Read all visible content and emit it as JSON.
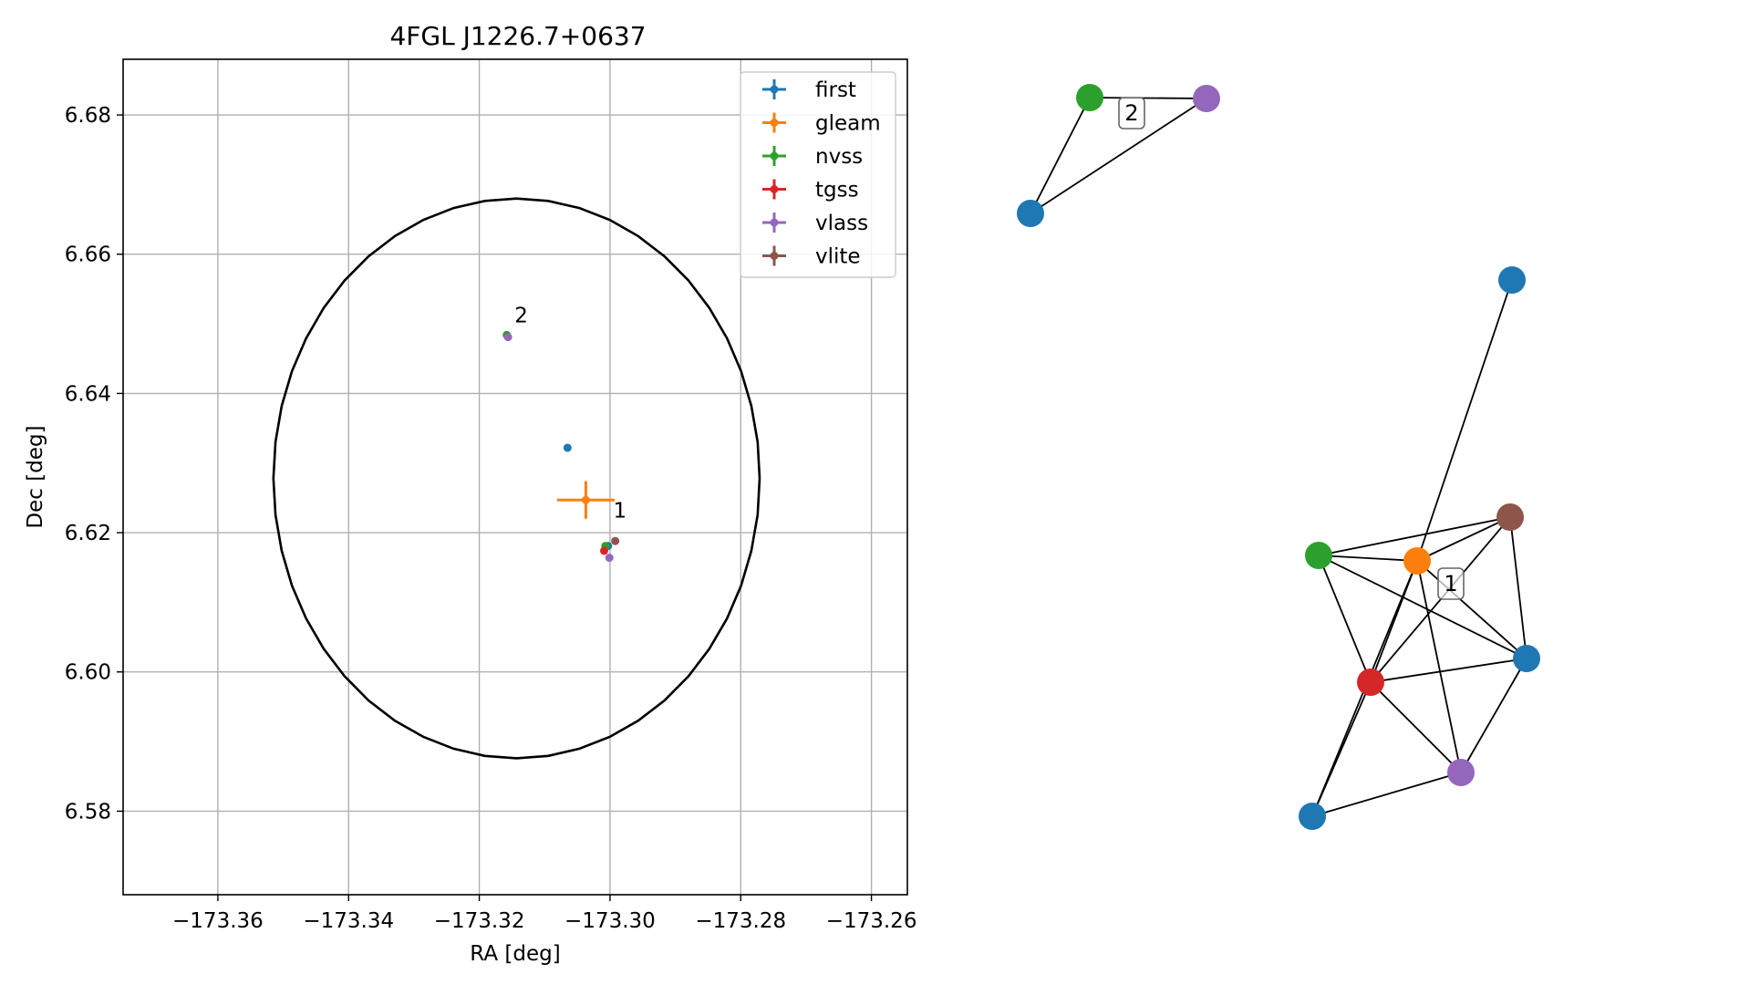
{
  "chart_data": [
    {
      "type": "scatter",
      "title": "4FGL J1226.7+0637",
      "xlabel": "RA [deg]",
      "ylabel": "Dec [deg]",
      "xlim": [
        -173.3745,
        -173.2545
      ],
      "ylim": [
        6.568,
        6.688
      ],
      "xticks": [
        -173.36,
        -173.34,
        -173.32,
        -173.3,
        -173.28,
        -173.26
      ],
      "xtick_labels": [
        "−173.36",
        "−173.34",
        "−173.32",
        "−173.30",
        "−173.28",
        "−173.26"
      ],
      "yticks": [
        6.58,
        6.6,
        6.62,
        6.64,
        6.66,
        6.68
      ],
      "ytick_labels": [
        "6.58",
        "6.60",
        "6.62",
        "6.64",
        "6.66",
        "6.68"
      ],
      "grid": true,
      "legend_position": "top-right",
      "ellipse": {
        "center": [
          -173.3143,
          6.6278
        ],
        "semi_axes": [
          0.0372,
          0.0402
        ],
        "color": "#000000"
      },
      "series": [
        {
          "name": "first",
          "color": "#1f77b4",
          "points": [
            {
              "x": -173.3065,
              "y": 6.6322,
              "xerr": 0.0004,
              "yerr": 0.0004
            },
            {
              "x": -173.3003,
              "y": 6.6181,
              "xerr": 0.0003,
              "yerr": 0.0003
            }
          ]
        },
        {
          "name": "gleam",
          "color": "#ff7f0e",
          "points": [
            {
              "x": -173.3037,
              "y": 6.6247,
              "xerr": 0.0044,
              "yerr": 0.0027
            }
          ]
        },
        {
          "name": "nvss",
          "color": "#2ca02c",
          "points": [
            {
              "x": -173.3007,
              "y": 6.6181,
              "xerr": 0.0003,
              "yerr": 0.0003
            },
            {
              "x": -173.3158,
              "y": 6.6484,
              "xerr": 0.0003,
              "yerr": 0.0003
            }
          ]
        },
        {
          "name": "tgss",
          "color": "#d62728",
          "points": [
            {
              "x": -173.3009,
              "y": 6.6174,
              "xerr": 0.0003,
              "yerr": 0.0003
            }
          ]
        },
        {
          "name": "vlass",
          "color": "#9467bd",
          "points": [
            {
              "x": -173.3001,
              "y": 6.6164,
              "xerr": 0.0003,
              "yerr": 0.0003
            },
            {
              "x": -173.3156,
              "y": 6.6481,
              "xerr": 0.0003,
              "yerr": 0.0003
            }
          ]
        },
        {
          "name": "vlite",
          "color": "#8c564b",
          "points": [
            {
              "x": -173.2992,
              "y": 6.6188,
              "xerr": 0.0003,
              "yerr": 0.0003
            }
          ]
        }
      ],
      "annotations": [
        {
          "text": "2",
          "x": -173.3146,
          "y": 6.6502
        },
        {
          "text": "1",
          "x": -173.2995,
          "y": 6.6222
        }
      ]
    },
    {
      "type": "network",
      "groups": [
        {
          "label": "2",
          "nodes": [
            {
              "id": "g2-nvss",
              "catalog": "nvss",
              "color": "#2ca02c"
            },
            {
              "id": "g2-vlass",
              "catalog": "vlass",
              "color": "#9467bd"
            },
            {
              "id": "g2-first",
              "catalog": "first",
              "color": "#1f77b4"
            }
          ],
          "edges": [
            [
              "g2-nvss",
              "g2-vlass"
            ],
            [
              "g2-nvss",
              "g2-first"
            ],
            [
              "g2-vlass",
              "g2-first"
            ]
          ]
        },
        {
          "label": "1",
          "nodes": [
            {
              "id": "g1-first-top",
              "catalog": "first",
              "color": "#1f77b4"
            },
            {
              "id": "g1-vlite",
              "catalog": "vlite",
              "color": "#8c564b"
            },
            {
              "id": "g1-nvss",
              "catalog": "nvss",
              "color": "#2ca02c"
            },
            {
              "id": "g1-gleam",
              "catalog": "gleam",
              "color": "#ff7f0e"
            },
            {
              "id": "g1-first-right",
              "catalog": "first",
              "color": "#1f77b4"
            },
            {
              "id": "g1-tgss",
              "catalog": "tgss",
              "color": "#d62728"
            },
            {
              "id": "g1-vlass",
              "catalog": "vlass",
              "color": "#9467bd"
            },
            {
              "id": "g1-first-bottom",
              "catalog": "first",
              "color": "#1f77b4"
            }
          ],
          "edges": [
            [
              "g1-first-top",
              "g1-gleam"
            ],
            [
              "g1-nvss",
              "g1-gleam"
            ],
            [
              "g1-nvss",
              "g1-vlite"
            ],
            [
              "g1-nvss",
              "g1-first-right"
            ],
            [
              "g1-nvss",
              "g1-tgss"
            ],
            [
              "g1-gleam",
              "g1-vlite"
            ],
            [
              "g1-gleam",
              "g1-first-right"
            ],
            [
              "g1-gleam",
              "g1-tgss"
            ],
            [
              "g1-gleam",
              "g1-vlass"
            ],
            [
              "g1-gleam",
              "g1-first-bottom"
            ],
            [
              "g1-vlite",
              "g1-first-right"
            ],
            [
              "g1-vlite",
              "g1-tgss"
            ],
            [
              "g1-tgss",
              "g1-first-right"
            ],
            [
              "g1-tgss",
              "g1-vlass"
            ],
            [
              "g1-tgss",
              "g1-first-bottom"
            ],
            [
              "g1-first-right",
              "g1-vlass"
            ],
            [
              "g1-vlass",
              "g1-first-bottom"
            ]
          ]
        }
      ]
    }
  ]
}
